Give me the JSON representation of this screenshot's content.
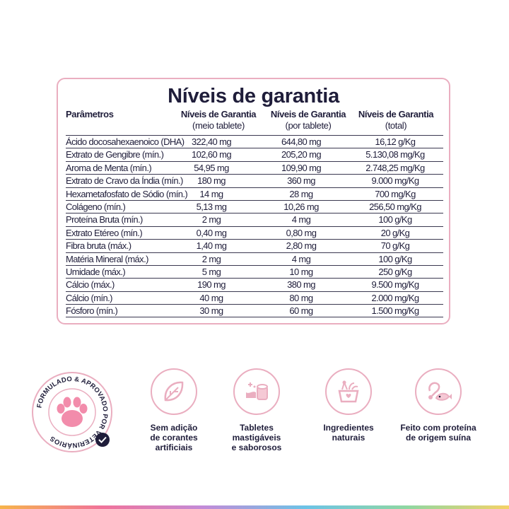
{
  "table": {
    "title": "Níveis de garantia",
    "headers": {
      "param": "Parâmetros",
      "col1": [
        "Níveis de Garantia",
        "(meio tablete)"
      ],
      "col2": [
        "Níveis de Garantia",
        "(por tablete)"
      ],
      "col3": [
        "Níveis de Garantia",
        "(total)"
      ]
    },
    "rows": [
      {
        "param": "Ácido docosahexaenoico (DHA)",
        "half": "322,40 mg",
        "tablet": "644,80 mg",
        "total": "16,12 g/Kg"
      },
      {
        "param": "Extrato de Gengibre (mín.)",
        "half": "102,60 mg",
        "tablet": "205,20 mg",
        "total": "5.130,08 mg/Kg"
      },
      {
        "param": "Aroma de Menta (mín.)",
        "half": "54,95 mg",
        "tablet": "109,90 mg",
        "total": "2.748,25 mg/Kg"
      },
      {
        "param": "Extrato de Cravo da Índia (mín.)",
        "half": "180 mg",
        "tablet": "360 mg",
        "total": "9.000 mg/Kg"
      },
      {
        "param": "Hexametafosfato de Sódio (mín.)",
        "half": "14 mg",
        "tablet": "28 mg",
        "total": "700 mg/Kg"
      },
      {
        "param": "Colágeno (mín.)",
        "half": "5,13 mg",
        "tablet": "10,26 mg",
        "total": "256,50 mg/Kg"
      },
      {
        "param": "Proteína Bruta (mín.)",
        "half": "2 mg",
        "tablet": "4 mg",
        "total": "100 g/Kg"
      },
      {
        "param": "Extrato Etéreo (mín.)",
        "half": "0,40 mg",
        "tablet": "0,80 mg",
        "total": "20 g/Kg"
      },
      {
        "param": "Fibra bruta (máx.)",
        "half": "1,40 mg",
        "tablet": "2,80 mg",
        "total": "70 g/Kg"
      },
      {
        "param": "Matéria Mineral (máx.)",
        "half": "2 mg",
        "tablet": "4 mg",
        "total": "100 g/Kg"
      },
      {
        "param": "Umidade (máx.)",
        "half": "5 mg",
        "tablet": "10 mg",
        "total": "250 g/Kg"
      },
      {
        "param": "Cálcio (máx.)",
        "half": "190 mg",
        "tablet": "380 mg",
        "total": "9.500 mg/Kg"
      },
      {
        "param": "Cálcio (mín.)",
        "half": "40 mg",
        "tablet": "80 mg",
        "total": "2.000 mg/Kg"
      },
      {
        "param": "Fósforo (mín.)",
        "half": "30 mg",
        "tablet": "60 mg",
        "total": "1.500 mg/Kg"
      }
    ]
  },
  "badge": {
    "text": "FORMULADO & APROVADO POR VETERINÁRIOS",
    "icon": "paw-icon"
  },
  "features": [
    {
      "icon": "leaf-icon",
      "lines": [
        "Sem adição",
        "de corantes",
        "artificiais"
      ]
    },
    {
      "icon": "chewable-tablet-icon",
      "lines": [
        "Tabletes",
        "mastigáveis",
        "e saborosos"
      ]
    },
    {
      "icon": "ingredients-basket-icon",
      "lines": [
        "Ingredientes",
        "naturais"
      ]
    },
    {
      "icon": "pork-fish-icon",
      "lines": [
        "Feito com proteína",
        "de origem suína"
      ]
    }
  ],
  "colors": {
    "accent": "#eaaec0",
    "text": "#1f1d3a",
    "paw": "#f28cab"
  }
}
